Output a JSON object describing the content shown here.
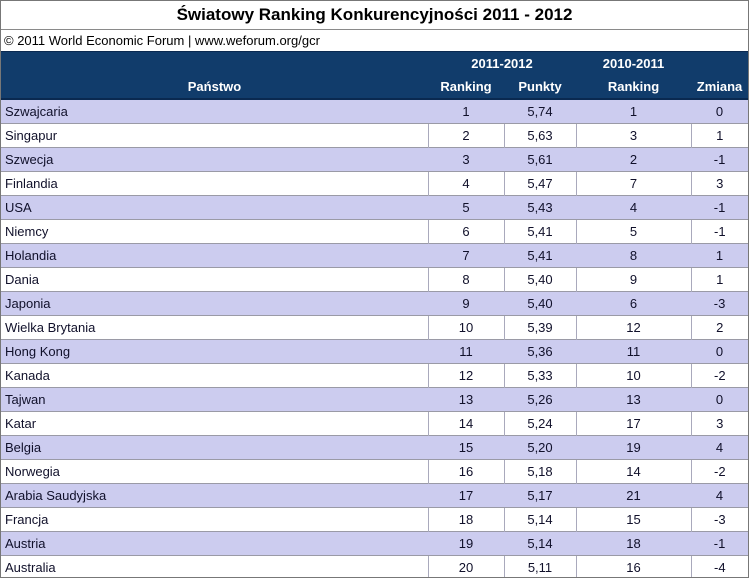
{
  "title": "Światowy Ranking Konkurencyjności 2011 - 2012",
  "copyright": "© 2011 World Economic Forum | www.weforum.org/gcr",
  "colors": {
    "header_bg": "#113C6B",
    "header_text": "#FFFFFF",
    "row_alt_bg": "#CCCCEF",
    "row_bg": "#FFFFFF",
    "grid": "#9A9AA6",
    "outer_border": "#777777"
  },
  "chart_data": {
    "type": "table",
    "title": "Światowy Ranking Konkurencyjności 2011 - 2012",
    "source_line": "© 2011 World Economic Forum | www.weforum.org/gcr",
    "group_headers": [
      {
        "label": "2011-2012",
        "spans_columns": [
          "Ranking",
          "Punkty"
        ]
      },
      {
        "label": "2010-2011",
        "spans_columns": [
          "Ranking"
        ]
      }
    ],
    "columns": [
      "Państwo",
      "Ranking",
      "Punkty",
      "Ranking",
      "Zmiana"
    ],
    "rows": [
      [
        "Szwajcaria",
        "1",
        "5,74",
        "1",
        "0"
      ],
      [
        "Singapur",
        "2",
        "5,63",
        "3",
        "1"
      ],
      [
        "Szwecja",
        "3",
        "5,61",
        "2",
        "-1"
      ],
      [
        "Finlandia",
        "4",
        "5,47",
        "7",
        "3"
      ],
      [
        "USA",
        "5",
        "5,43",
        "4",
        "-1"
      ],
      [
        "Niemcy",
        "6",
        "5,41",
        "5",
        "-1"
      ],
      [
        "Holandia",
        "7",
        "5,41",
        "8",
        "1"
      ],
      [
        "Dania",
        "8",
        "5,40",
        "9",
        "1"
      ],
      [
        "Japonia",
        "9",
        "5,40",
        "6",
        "-3"
      ],
      [
        "Wielka Brytania",
        "10",
        "5,39",
        "12",
        "2"
      ],
      [
        "Hong Kong",
        "11",
        "5,36",
        "11",
        "0"
      ],
      [
        "Kanada",
        "12",
        "5,33",
        "10",
        "-2"
      ],
      [
        "Tajwan",
        "13",
        "5,26",
        "13",
        "0"
      ],
      [
        "Katar",
        "14",
        "5,24",
        "17",
        "3"
      ],
      [
        "Belgia",
        "15",
        "5,20",
        "19",
        "4"
      ],
      [
        "Norwegia",
        "16",
        "5,18",
        "14",
        "-2"
      ],
      [
        "Arabia Saudyjska",
        "17",
        "5,17",
        "21",
        "4"
      ],
      [
        "Francja",
        "18",
        "5,14",
        "15",
        "-3"
      ],
      [
        "Austria",
        "19",
        "5,14",
        "18",
        "-1"
      ],
      [
        "Australia",
        "20",
        "5,11",
        "16",
        "-4"
      ]
    ]
  }
}
